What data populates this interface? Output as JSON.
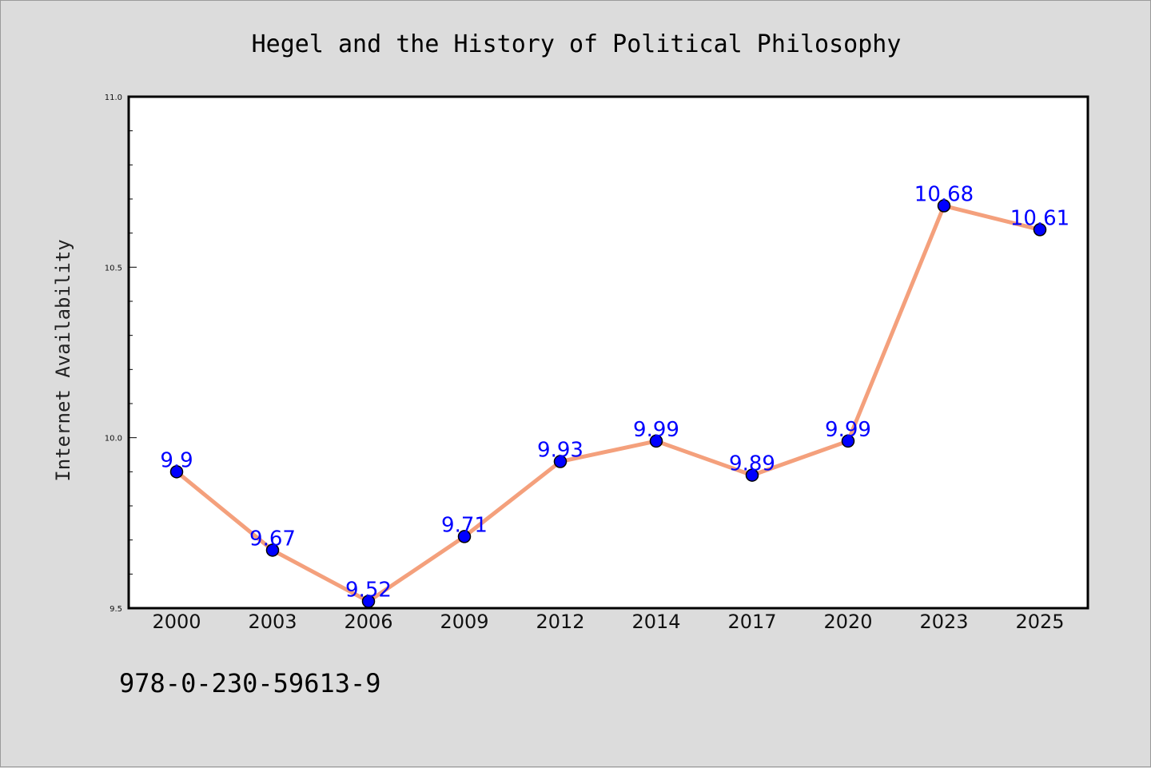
{
  "chart_data": {
    "type": "line",
    "title": "Hegel and the History of Political Philosophy",
    "ylabel": "Internet Availability",
    "xlabel": "",
    "categories": [
      "2000",
      "2003",
      "2006",
      "2009",
      "2012",
      "2014",
      "2017",
      "2020",
      "2023",
      "2025"
    ],
    "series": [
      {
        "values": [
          9.9,
          9.67,
          9.52,
          9.71,
          9.93,
          9.99,
          9.89,
          9.99,
          10.68,
          10.61
        ]
      }
    ],
    "data_labels": [
      "9.9",
      "9.67",
      "9.52",
      "9.71",
      "9.93",
      "9.99",
      "9.89",
      "9.99",
      "10.68",
      "10.61"
    ],
    "ylim": [
      9.5,
      11.0
    ],
    "yticks": [
      "9.5",
      "10.0",
      "10.5",
      "11.0"
    ],
    "grid": false,
    "colors": {
      "line": "#f4a07c",
      "marker": "#0000ff",
      "label": "#0000ff",
      "background": "#dcdcdc",
      "plot_area": "#ffffff"
    }
  },
  "caption": "978-0-230-59613-9"
}
